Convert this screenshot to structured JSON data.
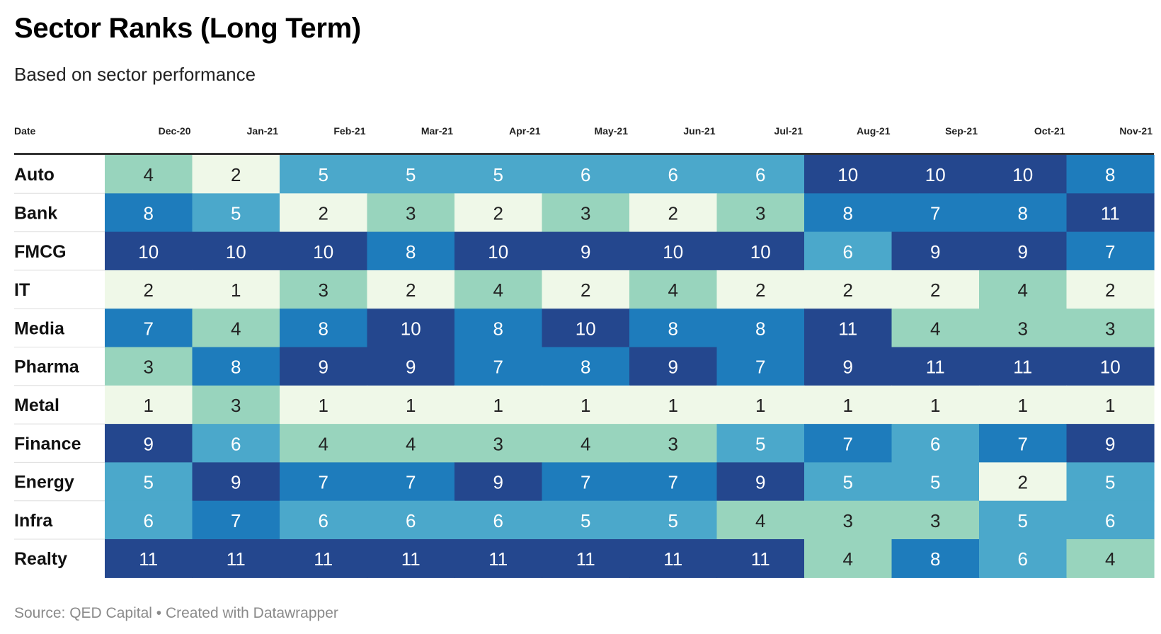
{
  "title": "Sector Ranks (Long Term)",
  "subtitle": "Based on sector performance",
  "footer": "Source: QED Capital • Created with Datawrapper",
  "colors": {
    "1": "#eff8e8",
    "2": "#eff8e8",
    "3": "#98d4bd",
    "4": "#98d4bd",
    "5": "#4ba8cb",
    "6": "#4ba8cb",
    "7": "#1e7cbc",
    "8": "#1e7cbc",
    "9": "#24478e",
    "10": "#24478e",
    "11": "#24478e",
    "text_dark": "#222222",
    "text_light": "#ffffff",
    "rule": "#333333",
    "gridline": "#dddddd"
  },
  "chart_data": {
    "type": "heatmap",
    "row_header": "Date",
    "columns": [
      "Dec-20",
      "Jan-21",
      "Feb-21",
      "Mar-21",
      "Apr-21",
      "May-21",
      "Jun-21",
      "Jul-21",
      "Aug-21",
      "Sep-21",
      "Oct-21",
      "Nov-21"
    ],
    "rows": [
      {
        "label": "Auto",
        "values": [
          4,
          2,
          5,
          5,
          5,
          6,
          6,
          6,
          10,
          10,
          10,
          8
        ]
      },
      {
        "label": "Bank",
        "values": [
          8,
          5,
          2,
          3,
          2,
          3,
          2,
          3,
          8,
          7,
          8,
          11
        ]
      },
      {
        "label": "FMCG",
        "values": [
          10,
          10,
          10,
          8,
          10,
          9,
          10,
          10,
          6,
          9,
          9,
          7
        ]
      },
      {
        "label": "IT",
        "values": [
          2,
          1,
          3,
          2,
          4,
          2,
          4,
          2,
          2,
          2,
          4,
          2
        ]
      },
      {
        "label": "Media",
        "values": [
          7,
          4,
          8,
          10,
          8,
          10,
          8,
          8,
          11,
          4,
          3,
          3
        ]
      },
      {
        "label": "Pharma",
        "values": [
          3,
          8,
          9,
          9,
          7,
          8,
          9,
          7,
          9,
          11,
          11,
          10
        ]
      },
      {
        "label": "Metal",
        "values": [
          1,
          3,
          1,
          1,
          1,
          1,
          1,
          1,
          1,
          1,
          1,
          1
        ]
      },
      {
        "label": "Finance",
        "values": [
          9,
          6,
          4,
          4,
          3,
          4,
          3,
          5,
          7,
          6,
          7,
          9
        ]
      },
      {
        "label": "Energy",
        "values": [
          5,
          9,
          7,
          7,
          9,
          7,
          7,
          9,
          5,
          5,
          2,
          5
        ]
      },
      {
        "label": "Infra",
        "values": [
          6,
          7,
          6,
          6,
          6,
          5,
          5,
          4,
          3,
          3,
          5,
          6
        ]
      },
      {
        "label": "Realty",
        "values": [
          11,
          11,
          11,
          11,
          11,
          11,
          11,
          11,
          4,
          8,
          6,
          4
        ]
      }
    ]
  }
}
